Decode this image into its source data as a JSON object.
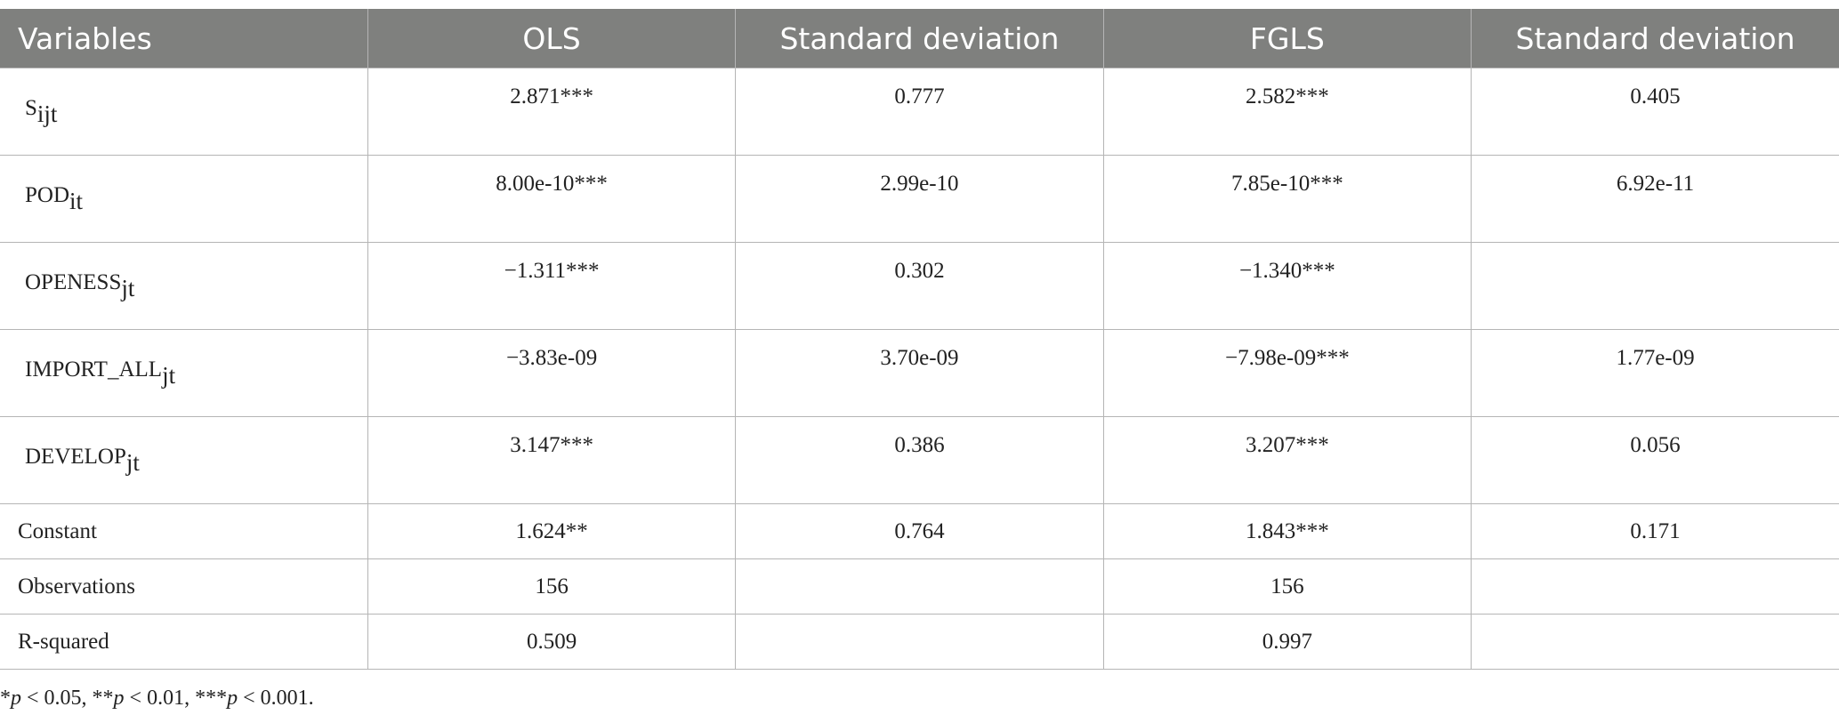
{
  "table": {
    "header": [
      "Variables",
      "OLS",
      "Standard deviation",
      "FGLS",
      "Standard deviation"
    ],
    "rows": [
      [
        {
          "name": "S",
          "sub": "ijt"
        },
        "2.871***",
        "0.777",
        "2.582***",
        "0.405"
      ],
      [
        {
          "name": "POD",
          "sub": "it"
        },
        "8.00e-10***",
        "2.99e-10",
        "7.85e-10***",
        "6.92e-11"
      ],
      [
        {
          "name": "OPENESS",
          "sub": "jt"
        },
        "−1.311***",
        "0.302",
        "−1.340***",
        null
      ],
      [
        {
          "name": "IMPORT_ALL",
          "sub": "jt"
        },
        "−3.83e-09",
        "3.70e-09",
        "−7.98e-09***",
        "1.77e-09"
      ],
      [
        {
          "name": "DEVELOP",
          "sub": "jt"
        },
        "3.147***",
        "0.386",
        "3.207***",
        "0.056"
      ],
      [
        "Constant",
        "1.624**",
        "0.764",
        "1.843***",
        "0.171"
      ],
      [
        "Observations",
        "156",
        null,
        "156",
        null
      ],
      [
        "R-squared",
        "0.509",
        null,
        "0.997",
        null
      ]
    ]
  },
  "footnote": [
    "*",
    "p",
    " < 0.05, **",
    "p",
    " < 0.01, ***",
    "p",
    " < 0.001."
  ]
}
